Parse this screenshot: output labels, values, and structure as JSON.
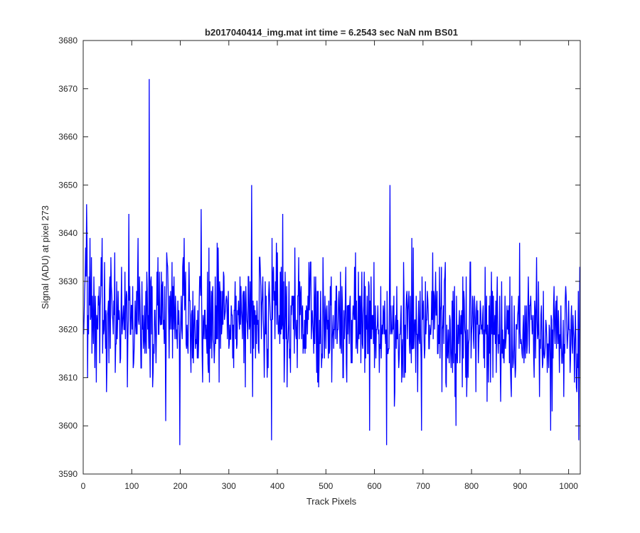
{
  "chart_data": {
    "type": "line",
    "title": "b2017040414_img.mat int time = 6.2543 sec  NaN nm BS01",
    "xlabel": "Track Pixels",
    "ylabel": "Signal (ADU) at pixel 273",
    "xlim": [
      0,
      1024
    ],
    "ylim": [
      3590,
      3680
    ],
    "xticks": [
      0,
      100,
      200,
      300,
      400,
      500,
      600,
      700,
      800,
      900,
      1000
    ],
    "yticks": [
      3590,
      3600,
      3610,
      3620,
      3630,
      3640,
      3650,
      3660,
      3670,
      3680
    ],
    "grid": false,
    "colors": {
      "line": "#0000ff",
      "axes": "#262626",
      "background": "#ffffff"
    },
    "series": [
      {
        "n_points": 1024,
        "x_start": 1,
        "x_step": 1,
        "baseline_start": 3624,
        "baseline_end": 3619,
        "noise_amplitude": 6.5,
        "extrema": [
          {
            "x": 136,
            "y": 3672
          },
          {
            "x": 347,
            "y": 3650
          },
          {
            "x": 632,
            "y": 3650
          },
          {
            "x": 7,
            "y": 3646
          },
          {
            "x": 243,
            "y": 3645
          },
          {
            "x": 94,
            "y": 3644
          },
          {
            "x": 411,
            "y": 3644
          },
          {
            "x": 199,
            "y": 3596
          },
          {
            "x": 388,
            "y": 3597
          },
          {
            "x": 625,
            "y": 3596
          },
          {
            "x": 1021,
            "y": 3597
          },
          {
            "x": 170,
            "y": 3601
          },
          {
            "x": 590,
            "y": 3599
          },
          {
            "x": 697,
            "y": 3599
          },
          {
            "x": 963,
            "y": 3599
          }
        ]
      }
    ]
  }
}
